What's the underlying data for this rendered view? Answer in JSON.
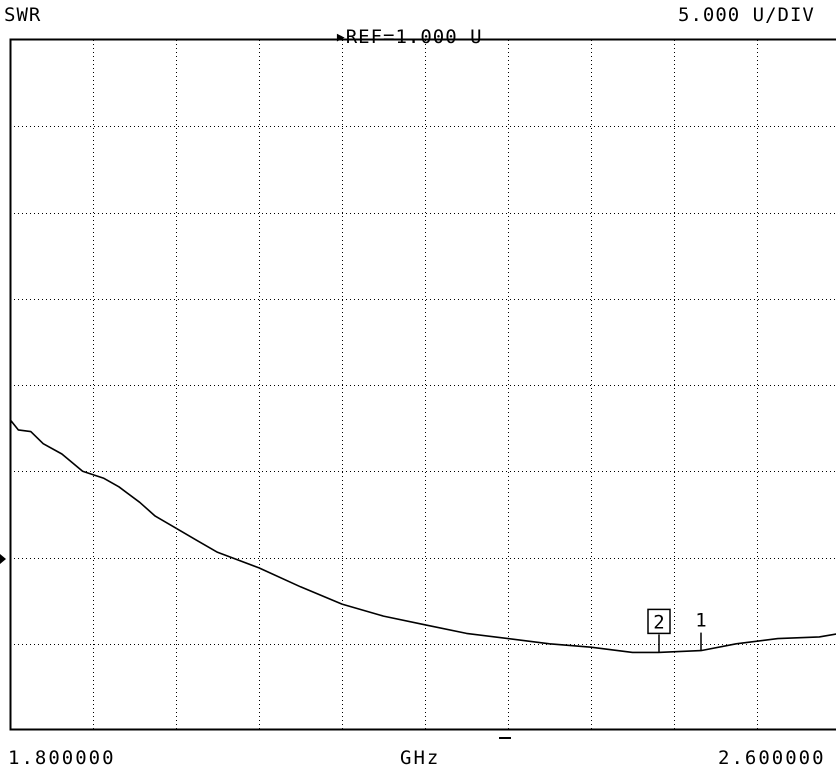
{
  "header": {
    "measurement": "SWR",
    "reference": "REF=1.000 U",
    "scale": "5.000 U/DIV"
  },
  "footer": {
    "start": "1.800000",
    "unit": "GHz",
    "stop": "2.600000"
  },
  "markers": [
    {
      "label": "2",
      "boxed": true,
      "freq_ghz": 2.4255
    },
    {
      "label": "1",
      "boxed": false,
      "freq_ghz": 2.466
    }
  ],
  "chart_data": {
    "type": "line",
    "title": "",
    "xlabel": "GHz",
    "ylabel": "",
    "x_start": 1.8,
    "x_stop": 2.6,
    "x_divisions": 10,
    "y_divisions": 8,
    "reference_value": 1.0,
    "units_per_division": 5.0,
    "reference_division_from_bottom": 2,
    "grid": true,
    "series": [
      {
        "values": [
          [
            1.8,
            9.0
          ],
          [
            1.808,
            8.4
          ],
          [
            1.82,
            8.3
          ],
          [
            1.832,
            7.6
          ],
          [
            1.85,
            7.0
          ],
          [
            1.87,
            6.0
          ],
          [
            1.89,
            5.6
          ],
          [
            1.905,
            5.1
          ],
          [
            1.925,
            4.2
          ],
          [
            1.94,
            3.4
          ],
          [
            1.96,
            2.7
          ],
          [
            1.98,
            2.0
          ],
          [
            2.0,
            1.3
          ],
          [
            2.04,
            0.4
          ],
          [
            2.08,
            -0.7
          ],
          [
            2.12,
            -1.7
          ],
          [
            2.16,
            -2.4
          ],
          [
            2.2,
            -2.9
          ],
          [
            2.24,
            -3.4
          ],
          [
            2.28,
            -3.7
          ],
          [
            2.32,
            -4.0
          ],
          [
            2.36,
            -4.2
          ],
          [
            2.4,
            -4.5
          ],
          [
            2.425,
            -4.5
          ],
          [
            2.466,
            -4.4
          ],
          [
            2.5,
            -4.0
          ],
          [
            2.54,
            -3.7
          ],
          [
            2.58,
            -3.6
          ],
          [
            2.6,
            -3.4
          ]
        ]
      }
    ]
  }
}
